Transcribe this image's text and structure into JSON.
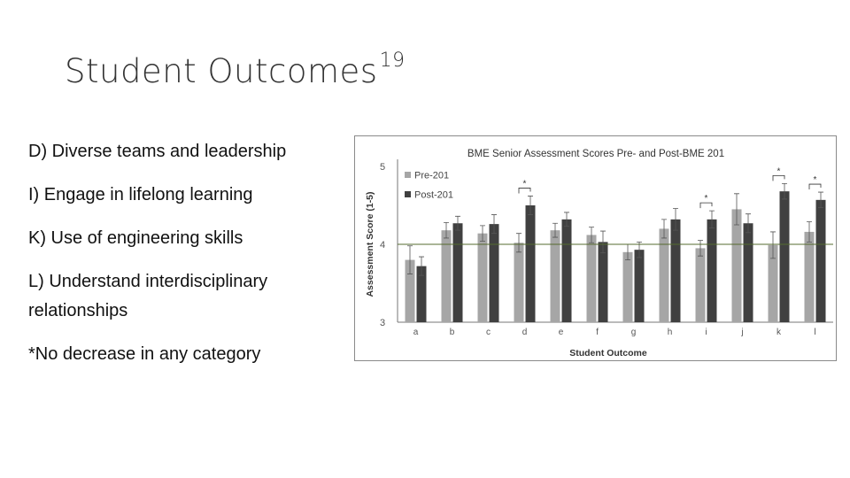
{
  "slide": {
    "title": "Student Outcomes",
    "title_superscript": "19",
    "bullets": [
      "D) Diverse teams and leadership",
      "I) Engage in lifelong learning",
      "K) Use of engineering skills",
      "L) Understand interdisciplinary relationships",
      "*No decrease in any category"
    ]
  },
  "chart_data": {
    "type": "bar",
    "title": "BME Senior Assessment Scores Pre- and Post-BME 201",
    "xlabel": "Student Outcome",
    "ylabel": "Assessment Score (1-5)",
    "ylim": [
      3,
      5
    ],
    "yticks": [
      "3",
      "4",
      "5"
    ],
    "reference_line": 4,
    "categories": [
      "a",
      "b",
      "c",
      "d",
      "e",
      "f",
      "g",
      "h",
      "i",
      "j",
      "k",
      "l"
    ],
    "series": [
      {
        "name": "Pre-201",
        "color": "#a6a6a6",
        "values": [
          3.8,
          4.18,
          4.14,
          4.02,
          4.18,
          4.12,
          3.9,
          4.2,
          3.95,
          4.45,
          3.99,
          4.16
        ],
        "error": [
          0.18,
          0.1,
          0.1,
          0.12,
          0.09,
          0.1,
          0.1,
          0.12,
          0.1,
          0.2,
          0.17,
          0.13
        ]
      },
      {
        "name": "Post-201",
        "color": "#404040",
        "values": [
          3.72,
          4.27,
          4.26,
          4.5,
          4.32,
          4.03,
          3.93,
          4.32,
          4.32,
          4.27,
          4.68,
          4.57
        ],
        "error": [
          0.12,
          0.09,
          0.12,
          0.12,
          0.09,
          0.14,
          0.1,
          0.14,
          0.11,
          0.12,
          0.1,
          0.1
        ]
      }
    ],
    "significance_markers": [
      "d",
      "i",
      "k",
      "l"
    ],
    "significance_symbol": "*",
    "legend_position": "top-left",
    "grid": false
  }
}
